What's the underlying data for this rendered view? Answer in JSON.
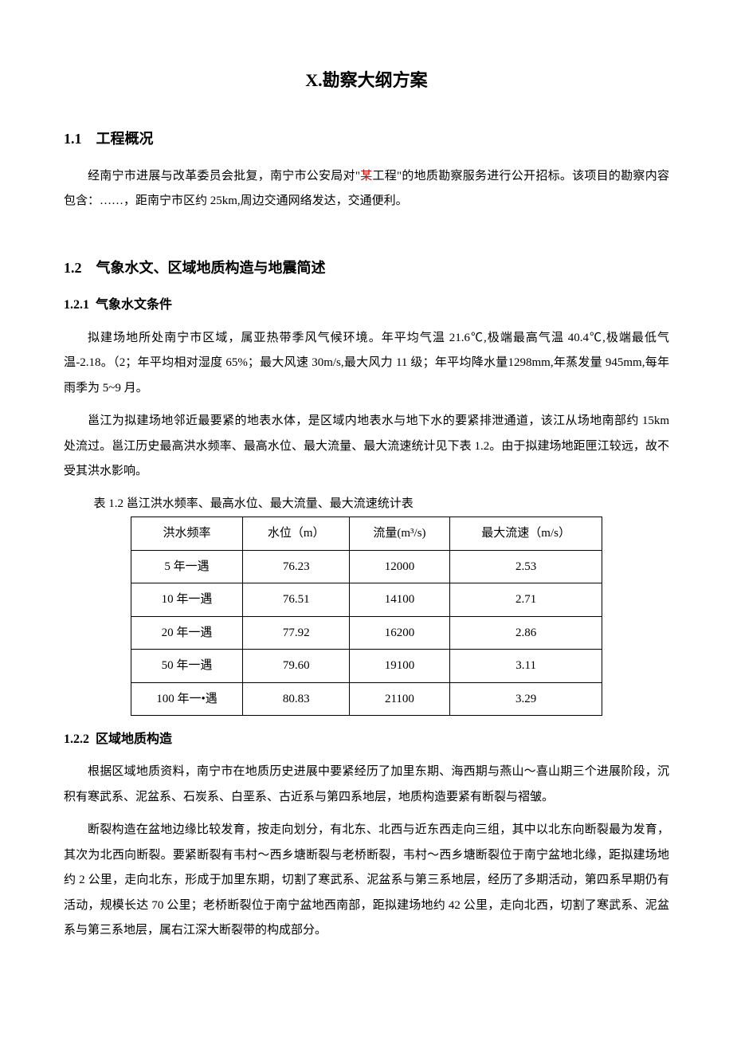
{
  "doc": {
    "title": "X.勘察大纲方案",
    "s1": {
      "num": "1.1",
      "heading": "工程概况",
      "p1_a": "经南宁市进展与改革委员会批复，南宁市公安局对\"",
      "p1_b": "某",
      "p1_c": "工程\"的地质勘察服务进行公开招标。该项目的勘察内容包含：……，距南宁市区约 25km,周边交通网络发达，交通便利。"
    },
    "s2": {
      "num": "1.2",
      "heading": "气象水文、区域地质构造与地震简述",
      "s2_1": {
        "num": "1.2.1",
        "heading": "气象水文条件",
        "p1": "拟建场地所处南宁市区域，属亚热带季风气候环境。年平均气温 21.6℃,极端最高气温 40.4℃,极端最低气温-2.18。（2；年平均相对湿度 65%；最大风速 30m/s,最大风力 11 级；年平均降水量1298mm,年蒸发量 945mm,每年雨季为 5~9 月。",
        "p2": "邕江为拟建场地邻近最要紧的地表水体，是区域内地表水与地下水的要紧排泄通道，该江从场地南部约 15km 处流过。邕江历史最高洪水频率、最高水位、最大流量、最大流速统计见下表 1.2。由于拟建场地距匣江较远，故不受其洪水影响。",
        "table_caption": "表 1.2 邕江洪水频率、最高水位、最大流量、最大流速统计表",
        "table": {
          "columns": [
            "洪水频率",
            "水位（m）",
            "流量(m³/s)",
            "最大流速（m/s）"
          ],
          "rows": [
            [
              "5 年一遇",
              "76.23",
              "12000",
              "2.53"
            ],
            [
              "10 年一遇",
              "76.51",
              "14100",
              "2.71"
            ],
            [
              "20 年一遇",
              "77.92",
              "16200",
              "2.86"
            ],
            [
              "50 年一遇",
              "79.60",
              "19100",
              "3.11"
            ],
            [
              "100 年一•遇",
              "80.83",
              "21100",
              "3.29"
            ]
          ],
          "border_color": "#000000",
          "col_widths_pct": [
            25,
            22,
            25,
            28
          ],
          "fontsize": 15
        }
      },
      "s2_2": {
        "num": "1.2.2",
        "heading": "区域地质构造",
        "p1": "根据区域地质资料，南宁市在地质历史进展中要紧经历了加里东期、海西期与燕山～喜山期三个进展阶段，沉积有寒武系、泥盆系、石炭系、白垩系、古近系与第四系地层，地质构造要紧有断裂与褶皱。",
        "p2": "断裂构造在盆地边缘比较发育，按走向划分，有北东、北西与近东西走向三组，其中以北东向断裂最为发育，其次为北西向断裂。要紧断裂有韦村～西乡塘断裂与老桥断裂，韦村～西乡塘断裂位于南宁盆地北缘，距拟建场地约 2 公里，走向北东，形成于加里东期，切割了寒武系、泥盆系与第三系地层，经历了多期活动，第四系早期仍有活动，规模长达 70 公里；老桥断裂位于南宁盆地西南部，距拟建场地约 42 公里，走向北西，切割了寒武系、泥盆系与第三系地层，属右江深大断裂带的构成部分。"
      }
    }
  },
  "colors": {
    "text": "#000000",
    "highlight": "#cc0000",
    "background": "#ffffff",
    "table_border": "#000000"
  },
  "typography": {
    "title_fontsize": 22,
    "h1_fontsize": 18,
    "h2_fontsize": 16,
    "body_fontsize": 15,
    "font_family": "SimSun"
  }
}
